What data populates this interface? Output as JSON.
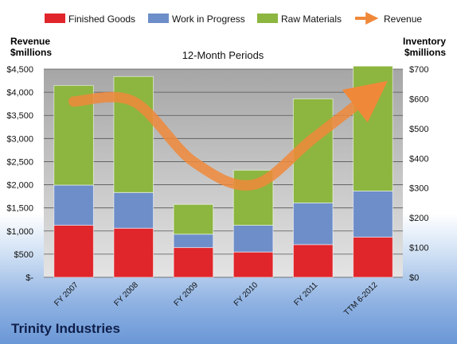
{
  "company": "Trinity Industries",
  "chart_data": {
    "type": "bar",
    "stacked": true,
    "title": "12-Month Periods",
    "categories": [
      "FY 2007",
      "FY 2008",
      "FY 2009",
      "FY 2010",
      "FY 2011",
      "TTM 6-2012"
    ],
    "series": [
      {
        "name": "Finished Goods",
        "axis": "right",
        "color": "#e0262b",
        "values": [
          175,
          165,
          100,
          85,
          110,
          135
        ]
      },
      {
        "name": "Work in Progress",
        "axis": "right",
        "color": "#6d8ec9",
        "values": [
          135,
          120,
          45,
          90,
          140,
          155
        ]
      },
      {
        "name": "Raw Materials",
        "axis": "right",
        "color": "#8cb63f",
        "values": [
          335,
          390,
          100,
          185,
          350,
          420
        ]
      }
    ],
    "line": {
      "name": "Revenue",
      "axis": "left",
      "color": "#f0883a",
      "values": [
        3800,
        3800,
        2500,
        2000,
        3000,
        4000
      ]
    },
    "left_axis": {
      "label_line1": "Revenue",
      "label_line2": "$millions",
      "min": 0,
      "max": 4500,
      "step": 500,
      "tick_labels": [
        "$-",
        "$500",
        "$1,000",
        "$1,500",
        "$2,000",
        "$2,500",
        "$3,000",
        "$3,500",
        "$4,000",
        "$4,500"
      ]
    },
    "right_axis": {
      "label_line1": "Inventory",
      "label_line2": "$millions",
      "min": 0,
      "max": 700,
      "step": 100,
      "tick_labels": [
        "$0",
        "$100",
        "$200",
        "$300",
        "$400",
        "$500",
        "$600",
        "$700"
      ]
    },
    "grid": true,
    "legend_position": "top"
  }
}
